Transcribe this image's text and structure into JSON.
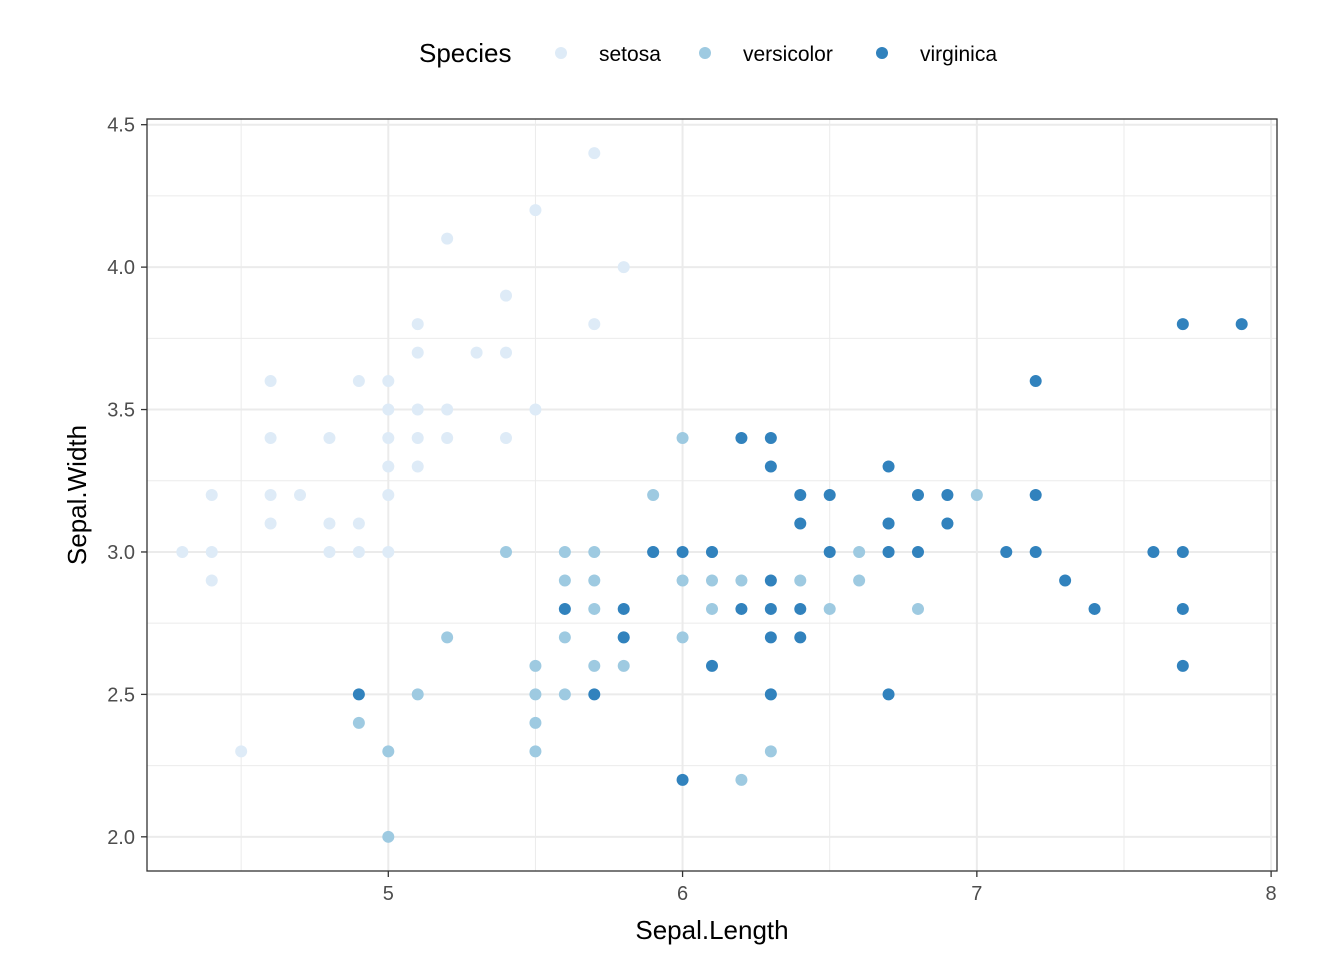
{
  "chart_data": {
    "type": "scatter",
    "xlabel": "Sepal.Length",
    "ylabel": "Sepal.Width",
    "xlim": [
      4.18,
      8.02
    ],
    "ylim": [
      1.88,
      4.52
    ],
    "x_ticks": [
      5,
      6,
      7,
      8
    ],
    "x_tick_labels": [
      "5",
      "6",
      "7",
      "8"
    ],
    "y_ticks": [
      2.0,
      2.5,
      3.0,
      3.5,
      4.0,
      4.5
    ],
    "y_tick_labels": [
      "2.0",
      "2.5",
      "3.0",
      "3.5",
      "4.0",
      "4.5"
    ],
    "grid": true,
    "legend": {
      "title": "Species",
      "position": "top"
    },
    "series": [
      {
        "name": "setosa",
        "color": "#deebf7",
        "points": [
          [
            4.3,
            3.0
          ],
          [
            4.4,
            3.0
          ],
          [
            4.4,
            3.2
          ],
          [
            4.4,
            2.9
          ],
          [
            4.5,
            2.3
          ],
          [
            4.6,
            3.6
          ],
          [
            4.6,
            3.4
          ],
          [
            4.6,
            3.2
          ],
          [
            4.6,
            3.1
          ],
          [
            4.7,
            3.2
          ],
          [
            4.8,
            3.4
          ],
          [
            4.8,
            3.1
          ],
          [
            4.8,
            3.0
          ],
          [
            4.9,
            3.6
          ],
          [
            4.9,
            3.1
          ],
          [
            4.9,
            3.0
          ],
          [
            5.0,
            3.6
          ],
          [
            5.0,
            3.5
          ],
          [
            5.0,
            3.4
          ],
          [
            5.0,
            3.3
          ],
          [
            5.0,
            3.2
          ],
          [
            5.0,
            3.0
          ],
          [
            5.1,
            3.8
          ],
          [
            5.1,
            3.7
          ],
          [
            5.1,
            3.5
          ],
          [
            5.1,
            3.4
          ],
          [
            5.1,
            3.3
          ],
          [
            5.2,
            4.1
          ],
          [
            5.2,
            3.5
          ],
          [
            5.2,
            3.4
          ],
          [
            5.3,
            3.7
          ],
          [
            5.4,
            3.9
          ],
          [
            5.4,
            3.7
          ],
          [
            5.4,
            3.4
          ],
          [
            5.5,
            4.2
          ],
          [
            5.5,
            3.5
          ],
          [
            5.7,
            4.4
          ],
          [
            5.7,
            3.8
          ],
          [
            5.8,
            4.0
          ]
        ]
      },
      {
        "name": "versicolor",
        "color": "#9ecae1",
        "points": [
          [
            4.9,
            2.4
          ],
          [
            5.0,
            2.3
          ],
          [
            5.0,
            2.0
          ],
          [
            5.1,
            2.5
          ],
          [
            5.2,
            2.7
          ],
          [
            5.4,
            3.0
          ],
          [
            5.5,
            2.6
          ],
          [
            5.5,
            2.5
          ],
          [
            5.5,
            2.4
          ],
          [
            5.5,
            2.3
          ],
          [
            5.6,
            3.0
          ],
          [
            5.6,
            2.9
          ],
          [
            5.6,
            2.7
          ],
          [
            5.6,
            2.5
          ],
          [
            5.7,
            3.0
          ],
          [
            5.7,
            2.9
          ],
          [
            5.7,
            2.8
          ],
          [
            5.7,
            2.6
          ],
          [
            5.8,
            2.7
          ],
          [
            5.8,
            2.6
          ],
          [
            5.9,
            3.2
          ],
          [
            5.9,
            3.0
          ],
          [
            6.0,
            3.4
          ],
          [
            6.0,
            2.9
          ],
          [
            6.0,
            2.7
          ],
          [
            6.1,
            3.0
          ],
          [
            6.1,
            2.9
          ],
          [
            6.1,
            2.8
          ],
          [
            6.2,
            2.9
          ],
          [
            6.2,
            2.2
          ],
          [
            6.3,
            2.5
          ],
          [
            6.3,
            2.3
          ],
          [
            6.4,
            2.9
          ],
          [
            6.5,
            2.8
          ],
          [
            6.6,
            3.0
          ],
          [
            6.6,
            2.9
          ],
          [
            6.7,
            3.1
          ],
          [
            6.7,
            3.0
          ],
          [
            6.8,
            2.8
          ],
          [
            6.9,
            3.1
          ],
          [
            7.0,
            3.2
          ]
        ]
      },
      {
        "name": "virginica",
        "color": "#3182bd",
        "points": [
          [
            4.9,
            2.5
          ],
          [
            5.6,
            2.8
          ],
          [
            5.7,
            2.5
          ],
          [
            5.8,
            2.8
          ],
          [
            5.8,
            2.7
          ],
          [
            5.9,
            3.0
          ],
          [
            6.0,
            3.0
          ],
          [
            6.0,
            2.2
          ],
          [
            6.1,
            3.0
          ],
          [
            6.1,
            2.6
          ],
          [
            6.2,
            3.4
          ],
          [
            6.2,
            2.8
          ],
          [
            6.3,
            3.4
          ],
          [
            6.3,
            3.3
          ],
          [
            6.3,
            2.9
          ],
          [
            6.3,
            2.8
          ],
          [
            6.3,
            2.7
          ],
          [
            6.3,
            2.5
          ],
          [
            6.4,
            3.2
          ],
          [
            6.4,
            3.1
          ],
          [
            6.4,
            2.8
          ],
          [
            6.4,
            2.7
          ],
          [
            6.5,
            3.2
          ],
          [
            6.5,
            3.0
          ],
          [
            6.7,
            3.3
          ],
          [
            6.7,
            3.1
          ],
          [
            6.7,
            3.0
          ],
          [
            6.7,
            2.5
          ],
          [
            6.8,
            3.2
          ],
          [
            6.8,
            3.0
          ],
          [
            6.9,
            3.2
          ],
          [
            6.9,
            3.1
          ],
          [
            7.1,
            3.0
          ],
          [
            7.2,
            3.6
          ],
          [
            7.2,
            3.2
          ],
          [
            7.2,
            3.0
          ],
          [
            7.3,
            2.9
          ],
          [
            7.4,
            2.8
          ],
          [
            7.6,
            3.0
          ],
          [
            7.7,
            3.8
          ],
          [
            7.7,
            3.0
          ],
          [
            7.7,
            2.8
          ],
          [
            7.7,
            2.6
          ],
          [
            7.9,
            3.8
          ]
        ]
      }
    ]
  }
}
